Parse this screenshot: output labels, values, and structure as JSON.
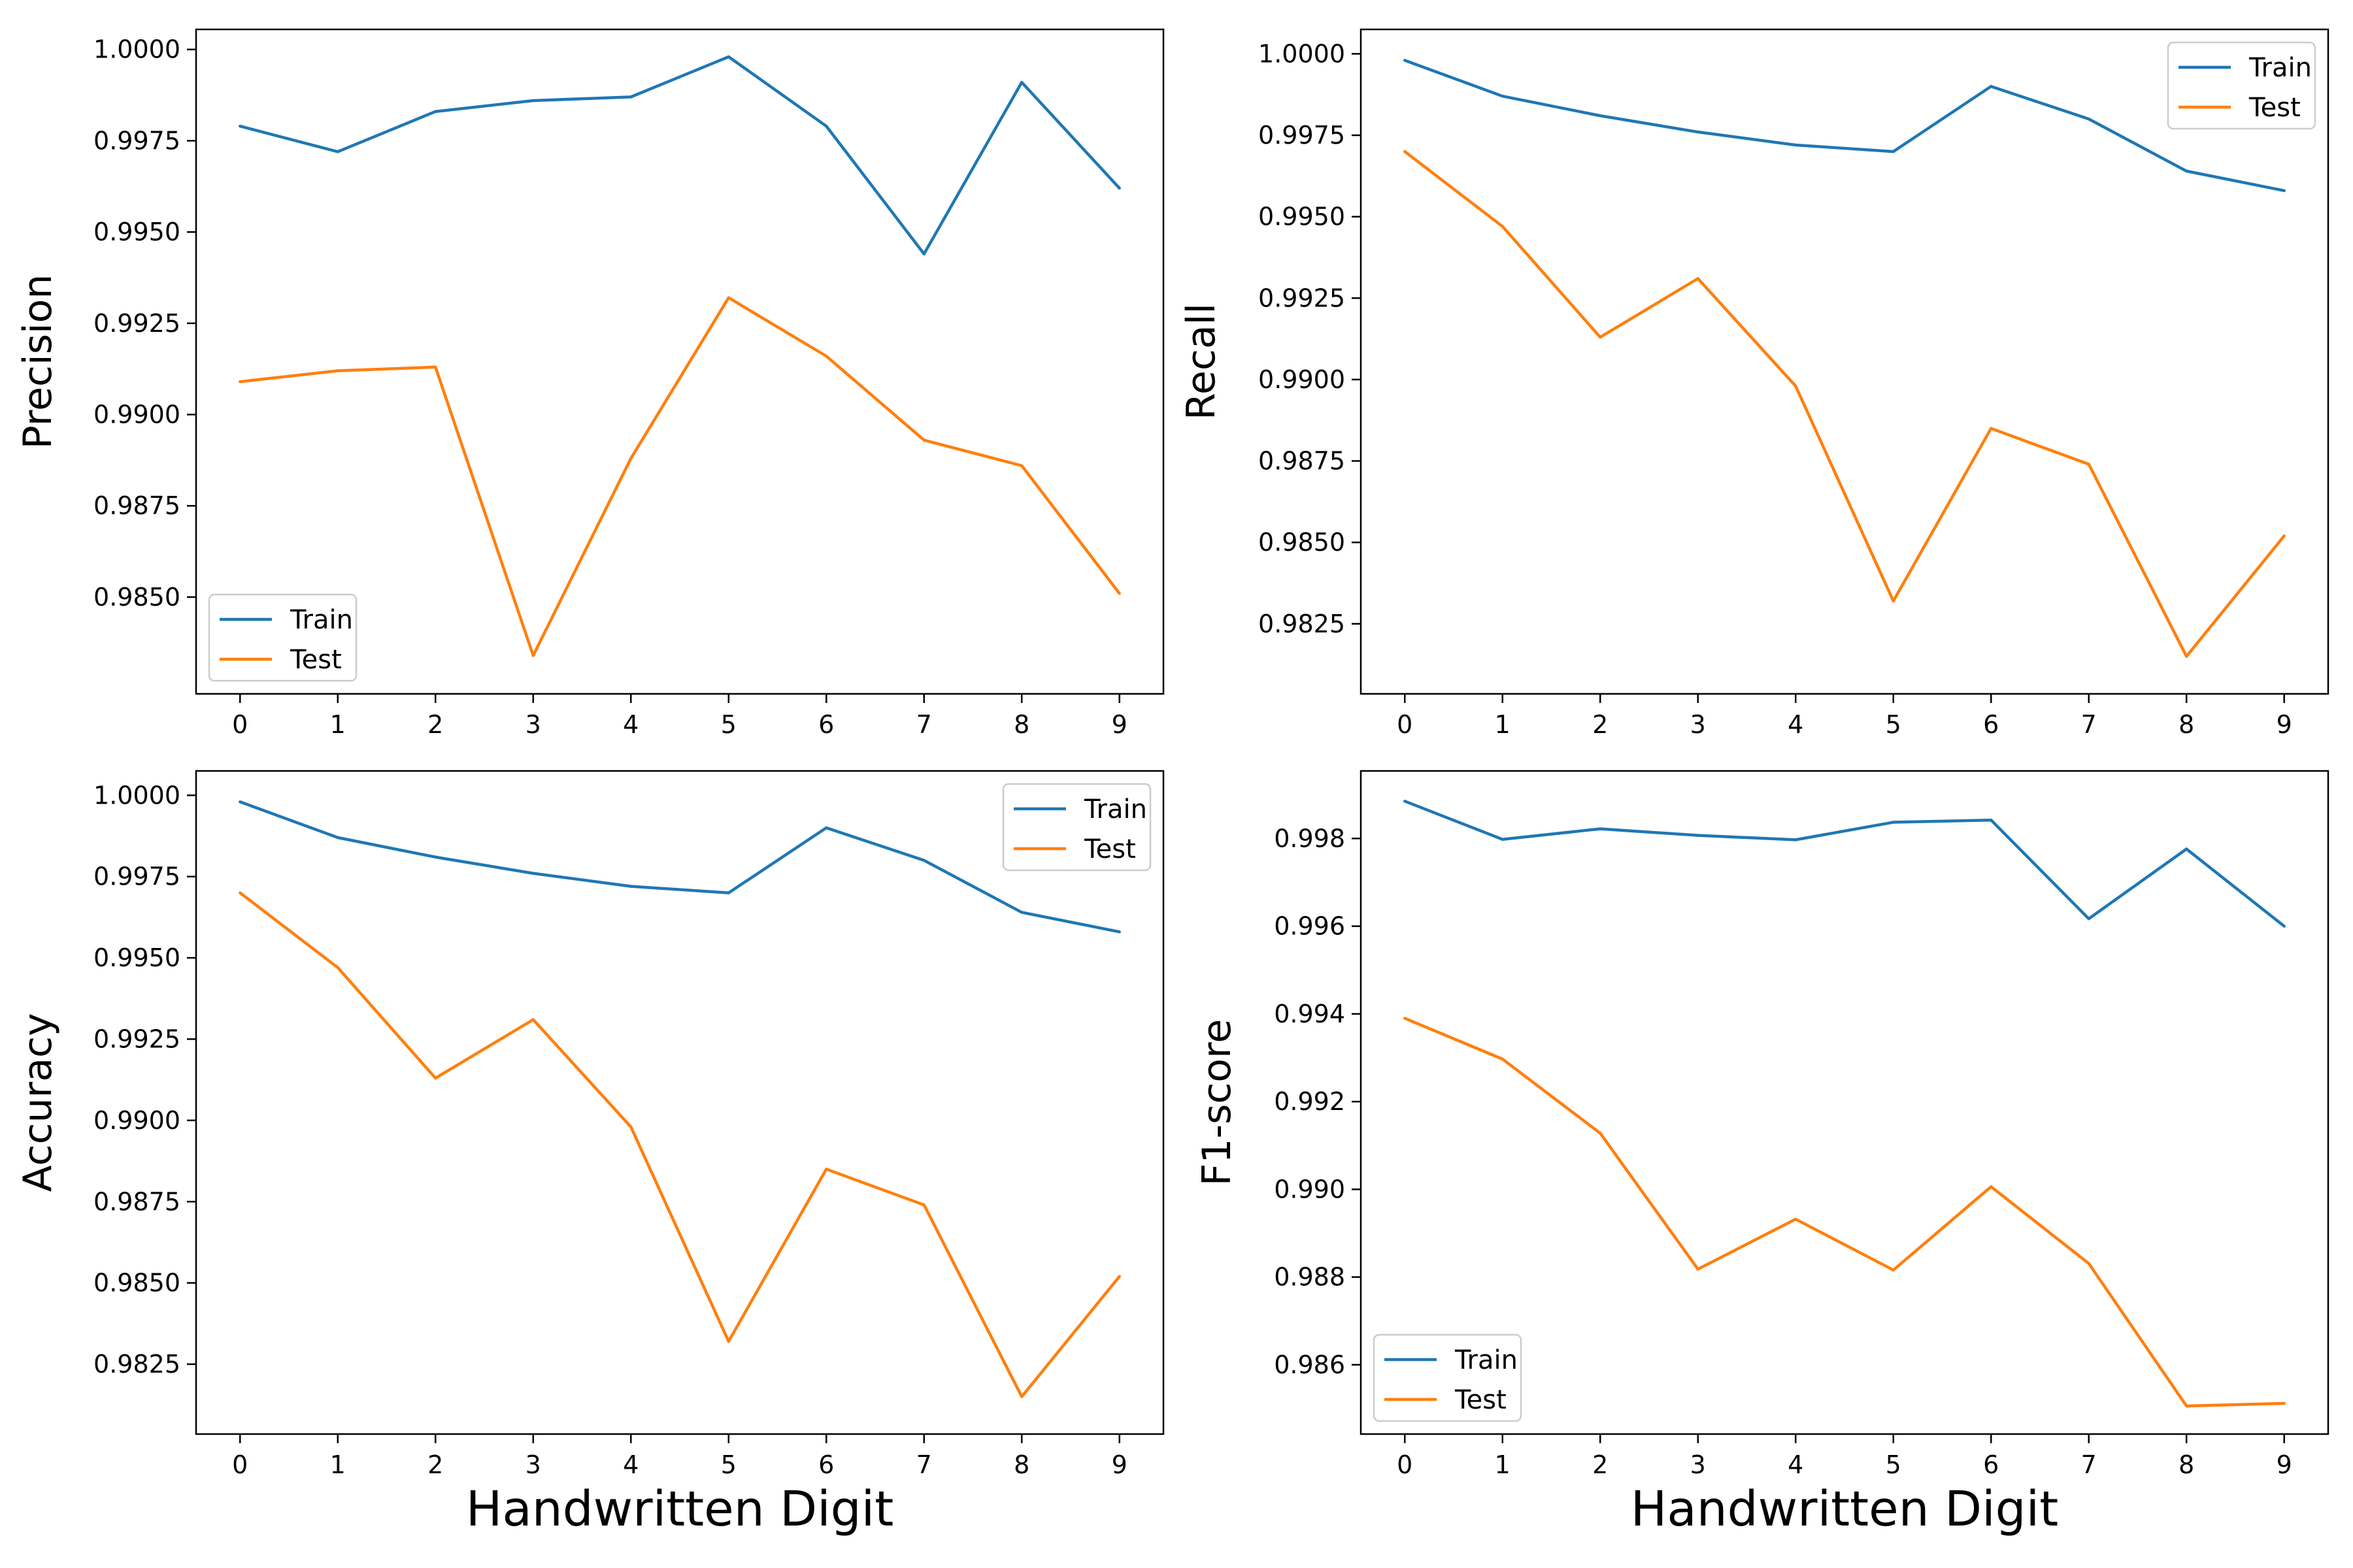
{
  "colors": {
    "train": "#1f77b4",
    "test": "#ff7f0e"
  },
  "chart_data": [
    {
      "type": "line",
      "xlabel": "",
      "ylabel": "Precision",
      "x": [
        0,
        1,
        2,
        3,
        4,
        5,
        6,
        7,
        8,
        9
      ],
      "ylim": [
        0.98235,
        1.00055
      ],
      "yticks": [
        0.985,
        0.9875,
        0.99,
        0.9925,
        0.995,
        0.9975,
        1.0
      ],
      "ytick_labels": [
        "0.9850",
        "0.9875",
        "0.9900",
        "0.9925",
        "0.9950",
        "0.9975",
        "1.0000"
      ],
      "legend": "lower-left",
      "series": [
        {
          "name": "Train",
          "values": [
            0.9979,
            0.9972,
            0.9983,
            0.9986,
            0.9987,
            0.9998,
            0.9979,
            0.9944,
            0.9991,
            0.9962
          ]
        },
        {
          "name": "Test",
          "values": [
            0.9909,
            0.9912,
            0.9913,
            0.9834,
            0.9888,
            0.9932,
            0.9916,
            0.9893,
            0.9886,
            0.9851
          ]
        }
      ]
    },
    {
      "type": "line",
      "xlabel": "",
      "ylabel": "Recall",
      "x": [
        0,
        1,
        2,
        3,
        4,
        5,
        6,
        7,
        8,
        9
      ],
      "ylim": [
        0.98035,
        1.00075
      ],
      "yticks": [
        0.9825,
        0.985,
        0.9875,
        0.99,
        0.9925,
        0.995,
        0.9975,
        1.0
      ],
      "ytick_labels": [
        "0.9825",
        "0.9850",
        "0.9875",
        "0.9900",
        "0.9925",
        "0.9950",
        "0.9975",
        "1.0000"
      ],
      "legend": "top-right",
      "series": [
        {
          "name": "Train",
          "values": [
            0.9998,
            0.9987,
            0.9981,
            0.9976,
            0.9972,
            0.997,
            0.999,
            0.998,
            0.9964,
            0.9958
          ]
        },
        {
          "name": "Test",
          "values": [
            0.997,
            0.9947,
            0.9913,
            0.9931,
            0.9898,
            0.9832,
            0.9885,
            0.9874,
            0.9815,
            0.9852
          ]
        }
      ]
    },
    {
      "type": "line",
      "xlabel": "Handwritten Digit",
      "ylabel": "Accuracy",
      "x": [
        0,
        1,
        2,
        3,
        4,
        5,
        6,
        7,
        8,
        9
      ],
      "ylim": [
        0.98035,
        1.00075
      ],
      "yticks": [
        0.9825,
        0.985,
        0.9875,
        0.99,
        0.9925,
        0.995,
        0.9975,
        1.0
      ],
      "ytick_labels": [
        "0.9825",
        "0.9850",
        "0.9875",
        "0.9900",
        "0.9925",
        "0.9950",
        "0.9975",
        "1.0000"
      ],
      "legend": "top-right",
      "series": [
        {
          "name": "Train",
          "values": [
            0.9998,
            0.9987,
            0.9981,
            0.9976,
            0.9972,
            0.997,
            0.999,
            0.998,
            0.9964,
            0.9958
          ]
        },
        {
          "name": "Test",
          "values": [
            0.997,
            0.9947,
            0.9913,
            0.9931,
            0.9898,
            0.9832,
            0.9885,
            0.9874,
            0.9815,
            0.9852
          ]
        }
      ]
    },
    {
      "type": "line",
      "xlabel": "Handwritten Digit",
      "ylabel": "F1-score",
      "x": [
        0,
        1,
        2,
        3,
        4,
        5,
        6,
        7,
        8,
        9
      ],
      "ylim": [
        0.98442,
        0.99954
      ],
      "yticks": [
        0.986,
        0.988,
        0.99,
        0.992,
        0.994,
        0.996,
        0.998
      ],
      "ytick_labels": [
        "0.986",
        "0.988",
        "0.990",
        "0.992",
        "0.994",
        "0.996",
        "0.998"
      ],
      "legend": "lower-left",
      "series": [
        {
          "name": "Train",
          "values": [
            0.99885,
            0.99798,
            0.99822,
            0.99807,
            0.99797,
            0.99837,
            0.99842,
            0.99617,
            0.99776,
            0.996
          ]
        },
        {
          "name": "Test",
          "values": [
            0.9939,
            0.99297,
            0.99128,
            0.98818,
            0.98932,
            0.98816,
            0.99006,
            0.98831,
            0.98506,
            0.98512
          ]
        }
      ]
    }
  ]
}
